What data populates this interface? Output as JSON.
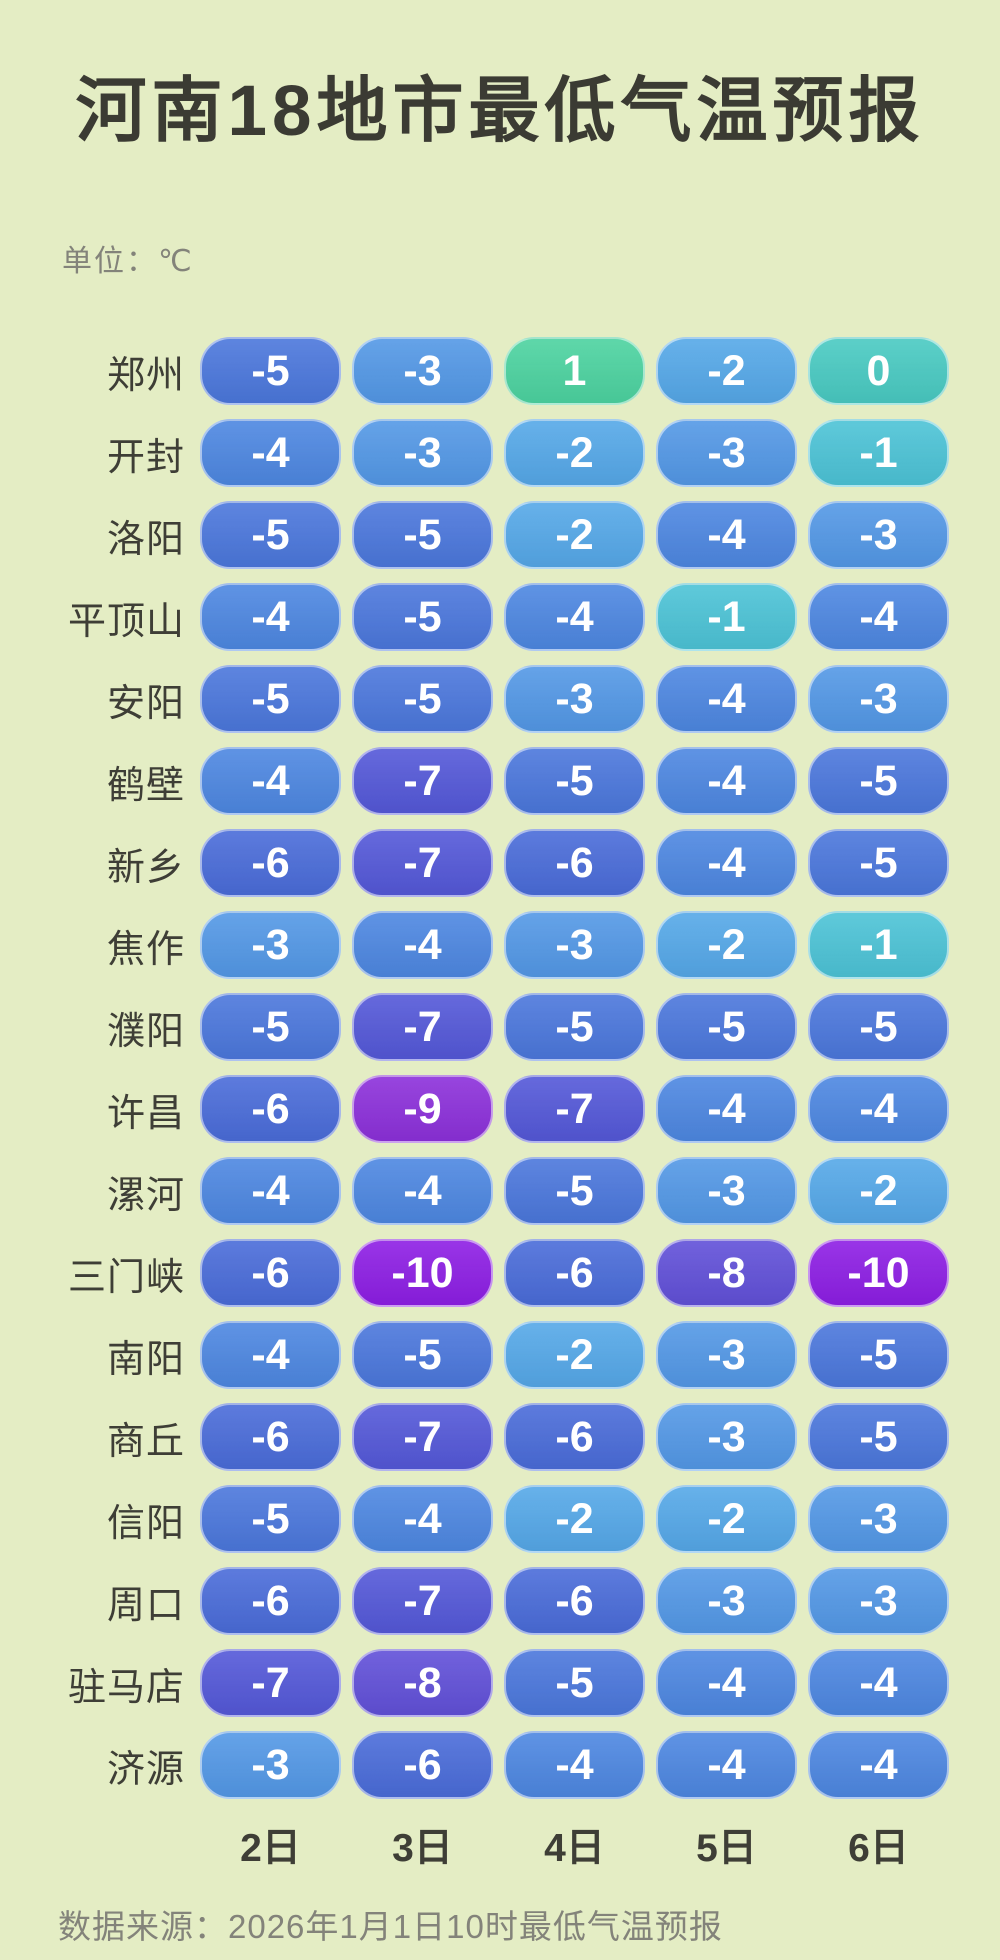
{
  "title": "河南18地市最低气温预报",
  "unit_label": "单位：℃",
  "footer": "数据来源：2026年1月1日10时最低气温预报",
  "day_headers": [
    "2日",
    "3日",
    "4日",
    "5日",
    "6日"
  ],
  "rows": [
    {
      "city": "郑州",
      "temps": [
        -5,
        -3,
        1,
        -2,
        0
      ]
    },
    {
      "city": "开封",
      "temps": [
        -4,
        -3,
        -2,
        -3,
        -1
      ]
    },
    {
      "city": "洛阳",
      "temps": [
        -5,
        -5,
        -2,
        -4,
        -3
      ]
    },
    {
      "city": "平顶山",
      "temps": [
        -4,
        -5,
        -4,
        -1,
        -4
      ]
    },
    {
      "city": "安阳",
      "temps": [
        -5,
        -5,
        -3,
        -4,
        -3
      ]
    },
    {
      "city": "鹤壁",
      "temps": [
        -4,
        -7,
        -5,
        -4,
        -5
      ]
    },
    {
      "city": "新乡",
      "temps": [
        -6,
        -7,
        -6,
        -4,
        -5
      ]
    },
    {
      "city": "焦作",
      "temps": [
        -3,
        -4,
        -3,
        -2,
        -1
      ]
    },
    {
      "city": "濮阳",
      "temps": [
        -5,
        -7,
        -5,
        -5,
        -5
      ]
    },
    {
      "city": "许昌",
      "temps": [
        -6,
        -9,
        -7,
        -4,
        -4
      ]
    },
    {
      "city": "漯河",
      "temps": [
        -4,
        -4,
        -5,
        -3,
        -2
      ]
    },
    {
      "city": "三门峡",
      "temps": [
        -6,
        -10,
        -6,
        -8,
        -10
      ]
    },
    {
      "city": "南阳",
      "temps": [
        -4,
        -5,
        -2,
        -3,
        -5
      ]
    },
    {
      "city": "商丘",
      "temps": [
        -6,
        -7,
        -6,
        -3,
        -5
      ]
    },
    {
      "city": "信阳",
      "temps": [
        -5,
        -4,
        -2,
        -2,
        -3
      ]
    },
    {
      "city": "周口",
      "temps": [
        -6,
        -7,
        -6,
        -3,
        -3
      ]
    },
    {
      "city": "驻马店",
      "temps": [
        -7,
        -8,
        -5,
        -4,
        -4
      ]
    },
    {
      "city": "济源",
      "temps": [
        -3,
        -6,
        -4,
        -4,
        -4
      ]
    }
  ],
  "colors": {
    "background": "#e4edc4",
    "text_dark": "#3e3e36",
    "text_gray": "#83837a",
    "pill_text": "#ffffff",
    "temp_scale": {
      "1": "#4cd3a0",
      "0": "#49cac2",
      "-1": "#4cc3d6",
      "-2": "#55a8e8",
      "-3": "#5398e6",
      "-4": "#4d87e1",
      "-5": "#4b77dc",
      "-6": "#4a6cd9",
      "-7": "#5458d8",
      "-8": "#6150d8",
      "-9": "#8c30da",
      "-10": "#8d1ee4"
    }
  },
  "chart_data": {
    "type": "heatmap",
    "title": "河南18地市最低气温预报",
    "unit": "℃",
    "columns": [
      "2日",
      "3日",
      "4日",
      "5日",
      "6日"
    ],
    "rows": [
      "郑州",
      "开封",
      "洛阳",
      "平顶山",
      "安阳",
      "鹤壁",
      "新乡",
      "焦作",
      "濮阳",
      "许昌",
      "漯河",
      "三门峡",
      "南阳",
      "商丘",
      "信阳",
      "周口",
      "驻马店",
      "济源"
    ],
    "values": [
      [
        -5,
        -3,
        1,
        -2,
        0
      ],
      [
        -4,
        -3,
        -2,
        -3,
        -1
      ],
      [
        -5,
        -5,
        -2,
        -4,
        -3
      ],
      [
        -4,
        -5,
        -4,
        -1,
        -4
      ],
      [
        -5,
        -5,
        -3,
        -4,
        -3
      ],
      [
        -4,
        -7,
        -5,
        -4,
        -5
      ],
      [
        -6,
        -7,
        -6,
        -4,
        -5
      ],
      [
        -3,
        -4,
        -3,
        -2,
        -1
      ],
      [
        -5,
        -7,
        -5,
        -5,
        -5
      ],
      [
        -6,
        -9,
        -7,
        -4,
        -4
      ],
      [
        -4,
        -4,
        -5,
        -3,
        -2
      ],
      [
        -6,
        -10,
        -6,
        -8,
        -10
      ],
      [
        -4,
        -5,
        -2,
        -3,
        -5
      ],
      [
        -6,
        -7,
        -6,
        -3,
        -5
      ],
      [
        -5,
        -4,
        -2,
        -2,
        -3
      ],
      [
        -6,
        -7,
        -6,
        -3,
        -3
      ],
      [
        -7,
        -8,
        -5,
        -4,
        -4
      ],
      [
        -3,
        -6,
        -4,
        -4,
        -4
      ]
    ],
    "value_range": [
      -10,
      1
    ],
    "color_encoding": "temperature mapped from mint-green (warm, 1) through teal/cyan/blues to vivid purple (cold, -10)",
    "source_note": "数据来源：2026年1月1日10时最低气温预报"
  }
}
